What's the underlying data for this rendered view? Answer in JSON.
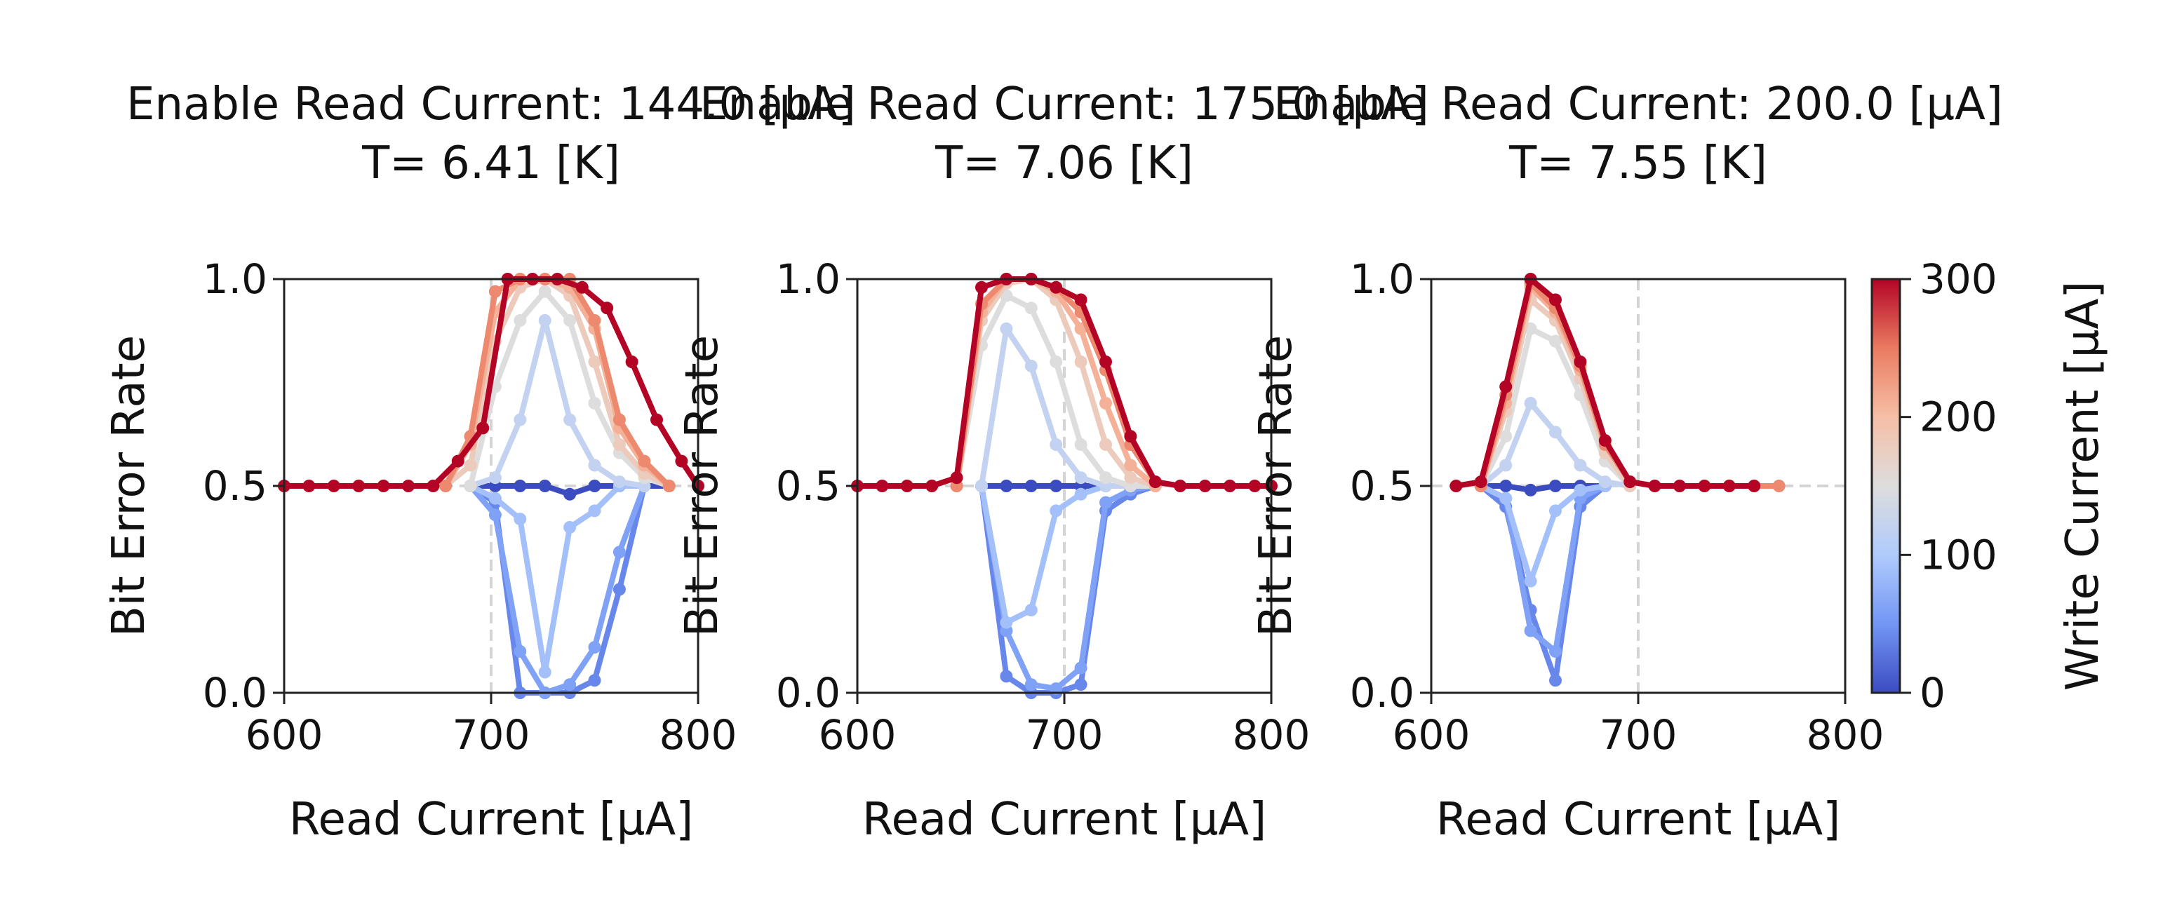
{
  "chart_data": [
    {
      "type": "line",
      "title": [
        "Enable Read Current: 144.0 [μA]",
        "T= 6.41 [K]"
      ],
      "xlabel": "Read Current [μA]",
      "ylabel": "Bit Error Rate",
      "xlim": [
        600,
        800
      ],
      "ylim": [
        0,
        1
      ],
      "xticks": [
        "600",
        "700",
        "800"
      ],
      "yticks": [
        "0.0",
        "0.5",
        "1.0"
      ],
      "vline_x": 700,
      "hline_y": 0.5,
      "grid": false,
      "series": [
        {
          "write_current": 0,
          "x": [
            690,
            702,
            714,
            726,
            738,
            750,
            762,
            774,
            786
          ],
          "y": [
            0.5,
            0.5,
            0.5,
            0.5,
            0.48,
            0.5,
            0.5,
            0.5,
            0.5
          ]
        },
        {
          "write_current": 40,
          "x": [
            690,
            702,
            714,
            726,
            738,
            750,
            762,
            774
          ],
          "y": [
            0.5,
            0.46,
            0.0,
            0.0,
            0.0,
            0.03,
            0.25,
            0.5
          ]
        },
        {
          "write_current": 60,
          "x": [
            690,
            702,
            714,
            726,
            738,
            750,
            762,
            774
          ],
          "y": [
            0.5,
            0.43,
            0.1,
            0.0,
            0.02,
            0.11,
            0.34,
            0.5
          ]
        },
        {
          "write_current": 90,
          "x": [
            690,
            702,
            714,
            726,
            738,
            750,
            762,
            774
          ],
          "y": [
            0.5,
            0.47,
            0.42,
            0.05,
            0.4,
            0.44,
            0.5,
            0.5
          ]
        },
        {
          "write_current": 120,
          "x": [
            690,
            702,
            714,
            726,
            738,
            750,
            762,
            774
          ],
          "y": [
            0.5,
            0.52,
            0.66,
            0.9,
            0.66,
            0.55,
            0.51,
            0.5
          ]
        },
        {
          "write_current": 150,
          "x": [
            690,
            702,
            714,
            726,
            738,
            750,
            762,
            774,
            786
          ],
          "y": [
            0.5,
            0.74,
            0.9,
            0.97,
            0.9,
            0.7,
            0.58,
            0.52,
            0.5
          ]
        },
        {
          "write_current": 180,
          "x": [
            678,
            690,
            702,
            714,
            726,
            738,
            750,
            762,
            774,
            786
          ],
          "y": [
            0.5,
            0.55,
            0.85,
            0.98,
            1.0,
            0.96,
            0.8,
            0.6,
            0.53,
            0.5
          ]
        },
        {
          "write_current": 210,
          "x": [
            678,
            690,
            702,
            714,
            726,
            738,
            750,
            762,
            774,
            786
          ],
          "y": [
            0.5,
            0.6,
            0.92,
            1.0,
            1.0,
            0.98,
            0.88,
            0.64,
            0.55,
            0.5
          ]
        },
        {
          "write_current": 240,
          "x": [
            678,
            690,
            702,
            714,
            726,
            738,
            750,
            762,
            774,
            786
          ],
          "y": [
            0.5,
            0.62,
            0.97,
            1.0,
            1.0,
            1.0,
            0.9,
            0.66,
            0.56,
            0.5
          ]
        },
        {
          "write_current": 300,
          "x": [
            600,
            612,
            624,
            636,
            648,
            660,
            672,
            684,
            696,
            708,
            720,
            732,
            744,
            756,
            768,
            780,
            792,
            800
          ],
          "y": [
            0.5,
            0.5,
            0.5,
            0.5,
            0.5,
            0.5,
            0.5,
            0.56,
            0.64,
            1.0,
            1.0,
            1.0,
            0.98,
            0.93,
            0.8,
            0.66,
            0.56,
            0.5
          ]
        }
      ]
    },
    {
      "type": "line",
      "title": [
        "Enable Read Current: 175.0 [μA]",
        "T= 7.06 [K]"
      ],
      "xlabel": "Read Current [μA]",
      "ylabel": "Bit Error Rate",
      "xlim": [
        600,
        800
      ],
      "ylim": [
        0,
        1
      ],
      "xticks": [
        "600",
        "700",
        "800"
      ],
      "yticks": [
        "0.0",
        "0.5",
        "1.0"
      ],
      "vline_x": 700,
      "hline_y": 0.5,
      "grid": false,
      "series": [
        {
          "write_current": 0,
          "x": [
            660,
            672,
            684,
            696,
            708,
            720
          ],
          "y": [
            0.5,
            0.5,
            0.5,
            0.5,
            0.5,
            0.5
          ]
        },
        {
          "write_current": 40,
          "x": [
            660,
            672,
            684,
            696,
            708,
            720,
            732,
            744
          ],
          "y": [
            0.5,
            0.04,
            0.0,
            0.0,
            0.02,
            0.44,
            0.48,
            0.5
          ]
        },
        {
          "write_current": 60,
          "x": [
            660,
            672,
            684,
            696,
            708,
            720,
            732,
            744
          ],
          "y": [
            0.5,
            0.15,
            0.02,
            0.01,
            0.06,
            0.46,
            0.49,
            0.5
          ]
        },
        {
          "write_current": 90,
          "x": [
            660,
            672,
            684,
            696,
            708,
            720,
            732,
            744
          ],
          "y": [
            0.5,
            0.17,
            0.2,
            0.44,
            0.48,
            0.5,
            0.5,
            0.5
          ]
        },
        {
          "write_current": 120,
          "x": [
            660,
            672,
            684,
            696,
            708,
            720,
            732,
            744
          ],
          "y": [
            0.5,
            0.88,
            0.79,
            0.6,
            0.52,
            0.5,
            0.5,
            0.5
          ]
        },
        {
          "write_current": 150,
          "x": [
            648,
            660,
            672,
            684,
            696,
            708,
            720,
            732,
            744
          ],
          "y": [
            0.5,
            0.84,
            0.96,
            0.93,
            0.8,
            0.6,
            0.52,
            0.5,
            0.5
          ]
        },
        {
          "write_current": 180,
          "x": [
            648,
            660,
            672,
            684,
            696,
            708,
            720,
            732,
            744
          ],
          "y": [
            0.5,
            0.9,
            0.99,
            1.0,
            0.95,
            0.8,
            0.6,
            0.52,
            0.5
          ]
        },
        {
          "write_current": 210,
          "x": [
            648,
            660,
            672,
            684,
            696,
            708,
            720,
            732,
            744
          ],
          "y": [
            0.5,
            0.92,
            1.0,
            1.0,
            0.97,
            0.88,
            0.7,
            0.55,
            0.5
          ]
        },
        {
          "write_current": 240,
          "x": [
            648,
            660,
            672,
            684,
            696,
            708,
            720,
            732,
            744
          ],
          "y": [
            0.5,
            0.94,
            1.0,
            1.0,
            0.98,
            0.92,
            0.78,
            0.6,
            0.51
          ]
        },
        {
          "write_current": 300,
          "x": [
            600,
            612,
            624,
            636,
            648,
            660,
            672,
            684,
            696,
            708,
            720,
            732,
            744,
            756,
            768,
            780,
            792,
            800
          ],
          "y": [
            0.5,
            0.5,
            0.5,
            0.5,
            0.52,
            0.98,
            1.0,
            1.0,
            0.98,
            0.95,
            0.8,
            0.62,
            0.51,
            0.5,
            0.5,
            0.5,
            0.5,
            0.5
          ]
        }
      ]
    },
    {
      "type": "line",
      "title": [
        "Enable Read Current: 200.0 [μA]",
        "T= 7.55 [K]"
      ],
      "xlabel": "Read Current [μA]",
      "ylabel": "Bit Error Rate",
      "xlim": [
        600,
        800
      ],
      "ylim": [
        0,
        1
      ],
      "xticks": [
        "600",
        "700",
        "800"
      ],
      "yticks": [
        "0.0",
        "0.5",
        "1.0"
      ],
      "vline_x": 700,
      "hline_y": 0.5,
      "grid": false,
      "series": [
        {
          "write_current": 0,
          "x": [
            624,
            636,
            648,
            660,
            672,
            684
          ],
          "y": [
            0.5,
            0.5,
            0.49,
            0.5,
            0.5,
            0.5
          ]
        },
        {
          "write_current": 40,
          "x": [
            624,
            636,
            648,
            660,
            672,
            684
          ],
          "y": [
            0.5,
            0.45,
            0.2,
            0.03,
            0.45,
            0.5
          ]
        },
        {
          "write_current": 60,
          "x": [
            624,
            636,
            648,
            660,
            672,
            684
          ],
          "y": [
            0.5,
            0.47,
            0.15,
            0.1,
            0.47,
            0.5
          ]
        },
        {
          "write_current": 90,
          "x": [
            624,
            636,
            648,
            660,
            672,
            684
          ],
          "y": [
            0.5,
            0.47,
            0.27,
            0.44,
            0.49,
            0.5
          ]
        },
        {
          "write_current": 120,
          "x": [
            624,
            636,
            648,
            660,
            672,
            684,
            696
          ],
          "y": [
            0.5,
            0.55,
            0.7,
            0.63,
            0.55,
            0.51,
            0.5
          ]
        },
        {
          "write_current": 150,
          "x": [
            624,
            636,
            648,
            660,
            672,
            684,
            696
          ],
          "y": [
            0.5,
            0.62,
            0.88,
            0.85,
            0.72,
            0.56,
            0.5
          ]
        },
        {
          "write_current": 180,
          "x": [
            624,
            636,
            648,
            660,
            672,
            684,
            696
          ],
          "y": [
            0.5,
            0.68,
            0.95,
            0.9,
            0.76,
            0.58,
            0.5
          ]
        },
        {
          "write_current": 210,
          "x": [
            624,
            636,
            648,
            660,
            672,
            684,
            696
          ],
          "y": [
            0.5,
            0.7,
            0.98,
            0.92,
            0.78,
            0.6,
            0.51
          ]
        },
        {
          "write_current": 240,
          "x": [
            624,
            636,
            648,
            660,
            672,
            684,
            696,
            708,
            720,
            732,
            744,
            756,
            768
          ],
          "y": [
            0.5,
            0.72,
            0.99,
            0.93,
            0.79,
            0.6,
            0.51,
            0.5,
            0.5,
            0.5,
            0.5,
            0.5,
            0.5
          ]
        },
        {
          "write_current": 300,
          "x": [
            612,
            624,
            636,
            648,
            660,
            672,
            684,
            696,
            708,
            720,
            732,
            744,
            756
          ],
          "y": [
            0.5,
            0.51,
            0.74,
            1.0,
            0.95,
            0.8,
            0.61,
            0.51,
            0.5,
            0.5,
            0.5,
            0.5,
            0.5
          ]
        }
      ]
    }
  ],
  "colorbar": {
    "label": "Write Current [μA]",
    "min": 0,
    "max": 300,
    "ticks": [
      "0",
      "100",
      "200",
      "300"
    ],
    "colormap": "coolwarm",
    "colors": [
      "#3b4cc0",
      "#7396f5",
      "#b0cbfc",
      "#dddddd",
      "#f6bfa6",
      "#ea7b60",
      "#b40426"
    ]
  }
}
